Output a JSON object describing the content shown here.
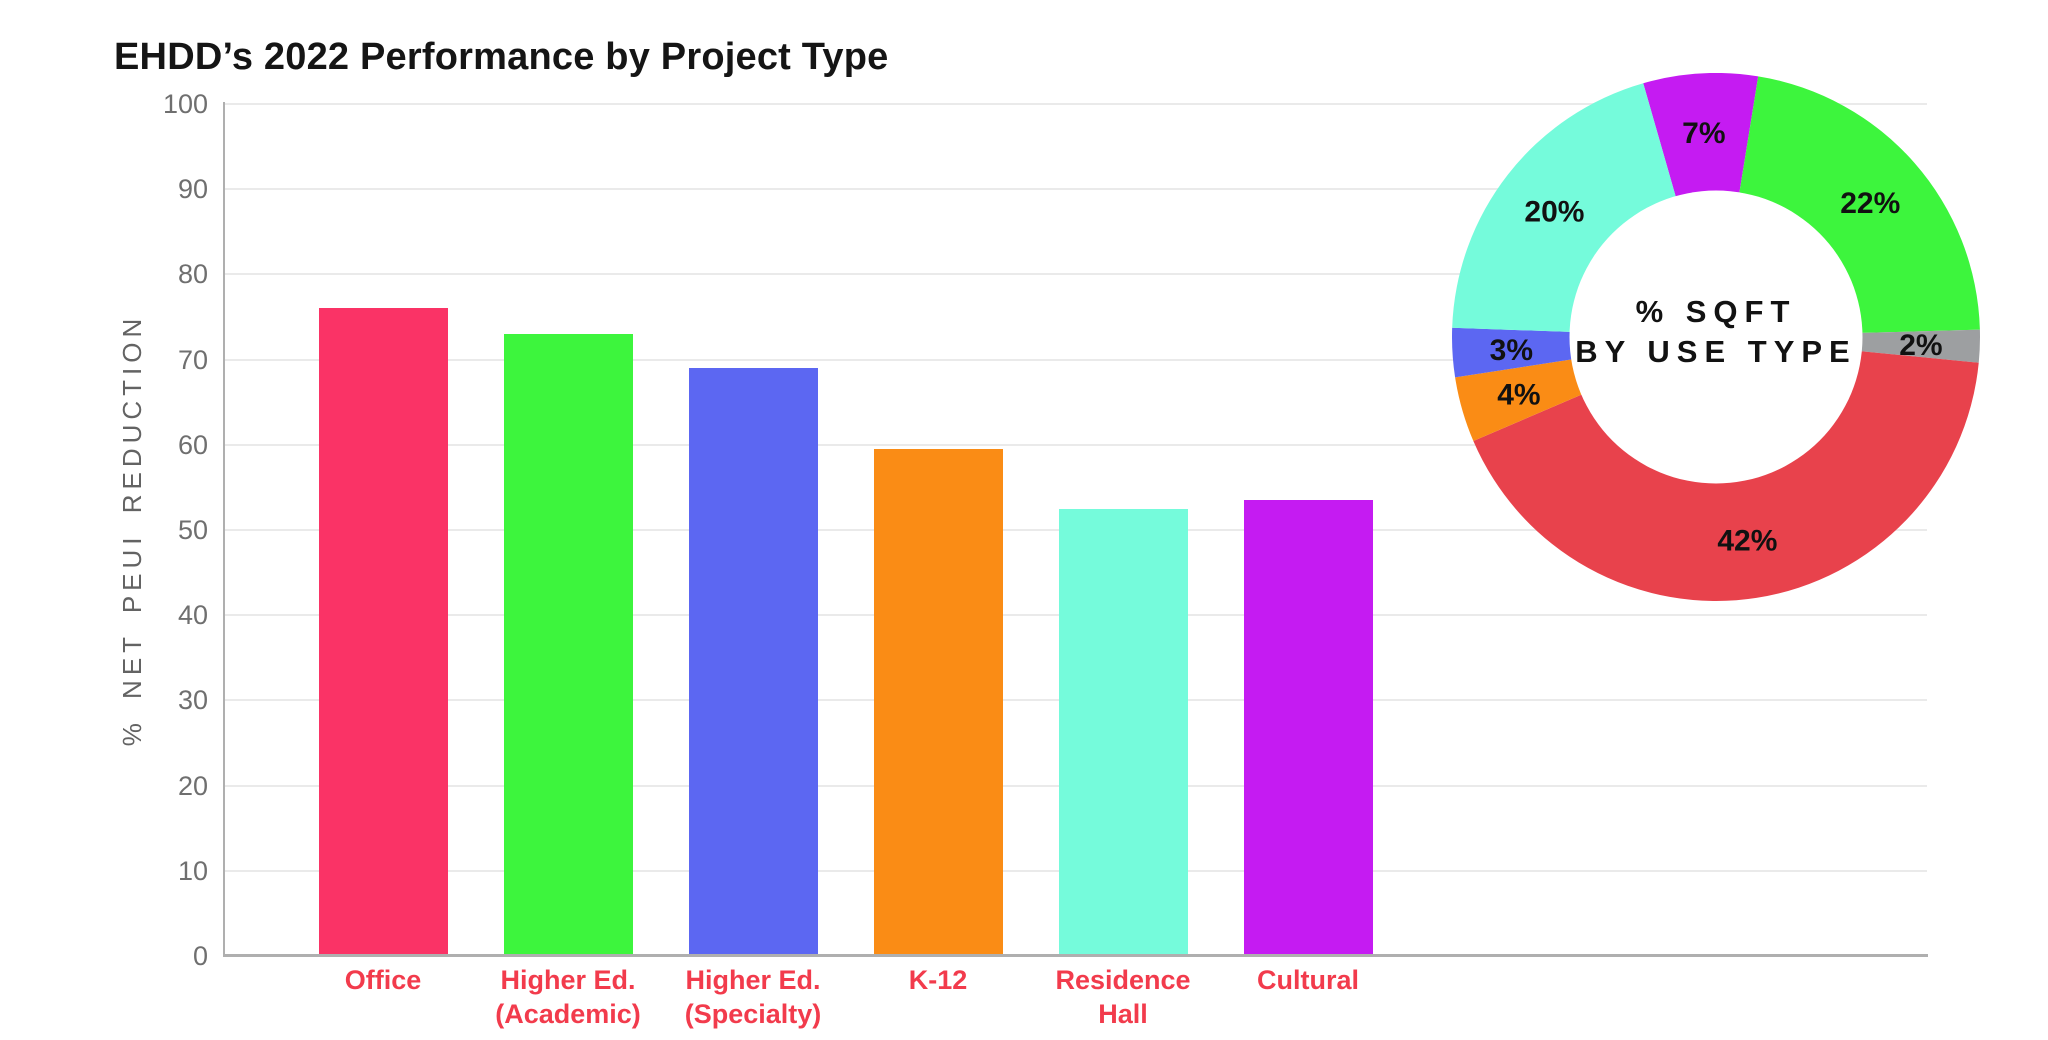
{
  "title": "EHDD’s 2022 Performance by Project Type",
  "chart_data": [
    {
      "type": "bar",
      "title": "EHDD’s 2022 Performance by Project Type",
      "xlabel": "",
      "ylabel": "% NET PEUI REDUCTION",
      "ylim": [
        0,
        100
      ],
      "ytick_step": 10,
      "grid": "horizontal",
      "categories": [
        "Office",
        "Higher Ed.\n(Academic)",
        "Higher Ed.\n(Specialty)",
        "K-12",
        "Residence\nHall",
        "Cultural"
      ],
      "values": [
        76,
        73,
        69,
        59.5,
        52.5,
        53.5
      ],
      "bar_colors": [
        "#FA3366",
        "#3DF53D",
        "#5C67F2",
        "#FA8C15",
        "#75FBDB",
        "#C51BF2"
      ],
      "axis_color": "#AFAFAF",
      "grid_color": "#EAEAEA",
      "tick_label_color": "#6F6F6F",
      "category_label_color": "#F23B4C"
    },
    {
      "type": "pie",
      "style": "donut",
      "center_label": [
        "% SQFT",
        "BY USE TYPE"
      ],
      "start_angle_deg": -16,
      "direction": "clockwise",
      "label_color": "#111111",
      "slices": [
        {
          "label": "7%",
          "value": 7,
          "color": "#C51BF2"
        },
        {
          "label": "22%",
          "value": 22,
          "color": "#3DF53D"
        },
        {
          "label": "2%",
          "value": 2,
          "color": "#9D9FA1"
        },
        {
          "label": "42%",
          "value": 42,
          "color": "#E8424C"
        },
        {
          "label": "4%",
          "value": 4,
          "color": "#FA8C15"
        },
        {
          "label": "3%",
          "value": 3,
          "color": "#5C67F2"
        },
        {
          "label": "20%",
          "value": 20,
          "color": "#75FBDB"
        }
      ]
    }
  ]
}
